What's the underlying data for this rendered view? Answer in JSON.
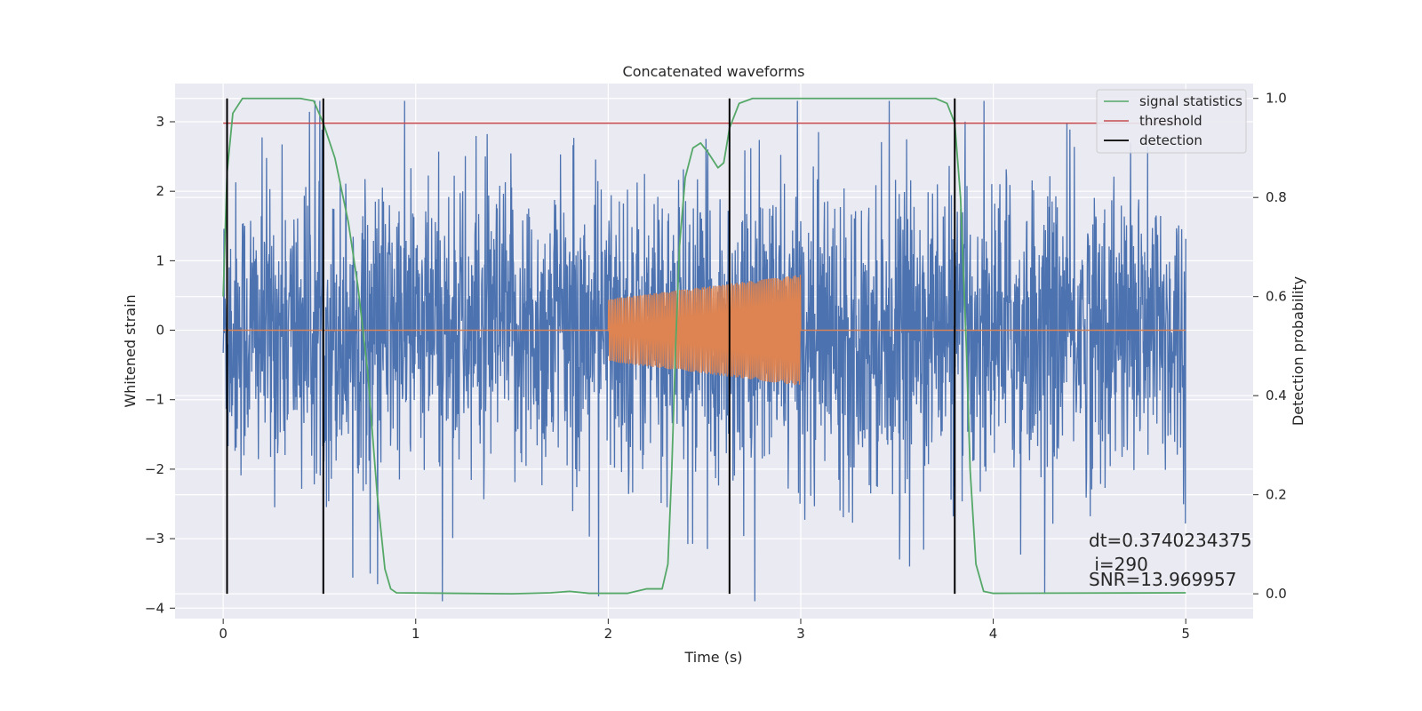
{
  "chart_data": {
    "type": "line",
    "title": "Concatenated waveforms",
    "xlabel": "Time (s)",
    "ylabel": "Whitened strain",
    "ylabel_right": "Detection probability",
    "xlim": [
      -0.25,
      5.35
    ],
    "ylim": [
      -4.15,
      3.55
    ],
    "ylim_right": [
      -0.05,
      1.03
    ],
    "x_ticks": [
      0,
      1,
      2,
      3,
      4,
      5
    ],
    "x_tick_labels": [
      "0",
      "1",
      "2",
      "3",
      "4",
      "5"
    ],
    "y_ticks": [
      3,
      2,
      1,
      0,
      -1,
      -2,
      -3,
      -4
    ],
    "y_tick_labels": [
      "3",
      "2",
      "1",
      "0",
      "−1",
      "−2",
      "−3",
      "−4"
    ],
    "y_right_ticks": [
      1.0,
      0.8,
      0.6,
      0.4,
      0.2,
      0.0
    ],
    "y_right_tick_labels": [
      "1.0",
      "0.8",
      "0.6",
      "0.4",
      "0.2",
      "0.0"
    ],
    "grid": true,
    "legend_position": "top-right",
    "legend": [
      {
        "label": "signal statistics",
        "color": "#55a868"
      },
      {
        "label": "threshold",
        "color": "#c44e52"
      },
      {
        "label": "detection",
        "color": "#000000"
      }
    ],
    "noise": {
      "color": "#4c72b0",
      "x_range": [
        0,
        5
      ],
      "approx_amplitude": 3.3
    },
    "injected_signal": {
      "color": "#dd8452",
      "x_range": [
        2.0,
        3.0
      ],
      "amplitude_start": 0.45,
      "amplitude_end": 0.8
    },
    "threshold": {
      "value_right_axis": 0.95,
      "x_range": [
        0,
        5
      ]
    },
    "detections": [
      0.02,
      0.52,
      2.63,
      3.8
    ],
    "signal_statistics": [
      {
        "x": 0.0,
        "y": 0.6
      },
      {
        "x": 0.02,
        "y": 0.85
      },
      {
        "x": 0.05,
        "y": 0.97
      },
      {
        "x": 0.1,
        "y": 1.0
      },
      {
        "x": 0.4,
        "y": 1.0
      },
      {
        "x": 0.47,
        "y": 0.995
      },
      {
        "x": 0.52,
        "y": 0.95
      },
      {
        "x": 0.58,
        "y": 0.88
      },
      {
        "x": 0.65,
        "y": 0.75
      },
      {
        "x": 0.7,
        "y": 0.62
      },
      {
        "x": 0.75,
        "y": 0.45
      },
      {
        "x": 0.8,
        "y": 0.2
      },
      {
        "x": 0.84,
        "y": 0.05
      },
      {
        "x": 0.87,
        "y": 0.01
      },
      {
        "x": 0.9,
        "y": 0.002
      },
      {
        "x": 1.5,
        "y": 0.0
      },
      {
        "x": 1.7,
        "y": 0.002
      },
      {
        "x": 1.8,
        "y": 0.005
      },
      {
        "x": 1.9,
        "y": 0.001
      },
      {
        "x": 2.1,
        "y": 0.001
      },
      {
        "x": 2.2,
        "y": 0.01
      },
      {
        "x": 2.28,
        "y": 0.01
      },
      {
        "x": 2.31,
        "y": 0.06
      },
      {
        "x": 2.33,
        "y": 0.25
      },
      {
        "x": 2.35,
        "y": 0.5
      },
      {
        "x": 2.37,
        "y": 0.7
      },
      {
        "x": 2.4,
        "y": 0.84
      },
      {
        "x": 2.44,
        "y": 0.9
      },
      {
        "x": 2.48,
        "y": 0.91
      },
      {
        "x": 2.52,
        "y": 0.89
      },
      {
        "x": 2.57,
        "y": 0.86
      },
      {
        "x": 2.6,
        "y": 0.87
      },
      {
        "x": 2.63,
        "y": 0.94
      },
      {
        "x": 2.68,
        "y": 0.99
      },
      {
        "x": 2.75,
        "y": 1.0
      },
      {
        "x": 3.7,
        "y": 1.0
      },
      {
        "x": 3.76,
        "y": 0.99
      },
      {
        "x": 3.8,
        "y": 0.95
      },
      {
        "x": 3.83,
        "y": 0.8
      },
      {
        "x": 3.86,
        "y": 0.5
      },
      {
        "x": 3.88,
        "y": 0.25
      },
      {
        "x": 3.91,
        "y": 0.06
      },
      {
        "x": 3.95,
        "y": 0.005
      },
      {
        "x": 4.0,
        "y": 0.001
      },
      {
        "x": 5.0,
        "y": 0.002
      }
    ]
  },
  "annotations": {
    "dt": "dt=0.3740234375",
    "i": " i=290",
    "snr": "SNR=13.969957"
  }
}
